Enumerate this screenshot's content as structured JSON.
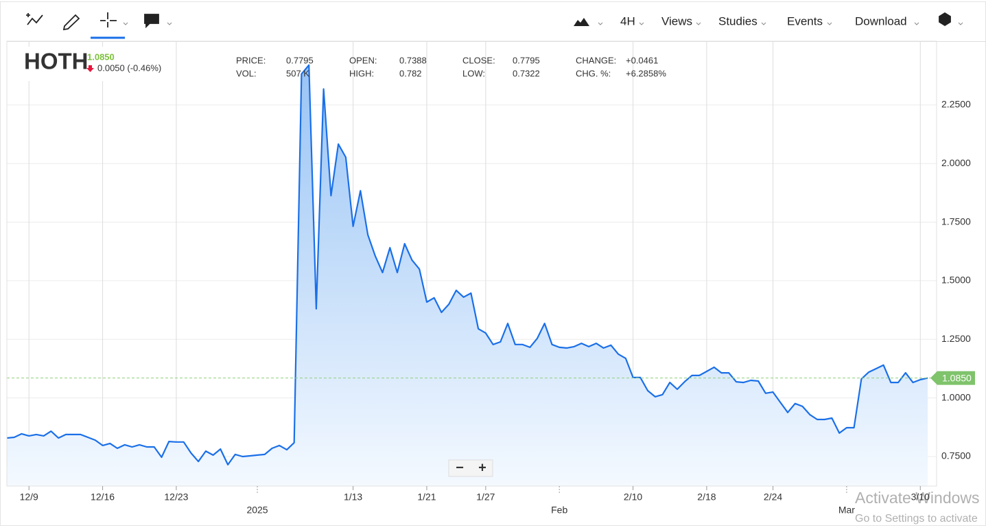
{
  "toolbar": {
    "interval": "4H",
    "menus": [
      "Views",
      "Studies",
      "Events",
      "Download"
    ],
    "zoom": [
      "−",
      "+"
    ]
  },
  "watermark": [
    "Activate Windows",
    "Go to Settings to activate"
  ],
  "chart_data": {
    "type": "area",
    "symbol": "HOTH",
    "last": {
      "value": 1.085,
      "label": "1.0850"
    },
    "change": "0.0050 (-0.46%)",
    "info": [
      {
        "label": "PRICE:",
        "value": "0.7795"
      },
      {
        "label": "VOL:",
        "value": "507 K"
      },
      {
        "label": "OPEN:",
        "value": "0.7388"
      },
      {
        "label": "HIGH:",
        "value": "0.782"
      },
      {
        "label": "CLOSE:",
        "value": "0.7795"
      },
      {
        "label": "LOW:",
        "value": "0.7322"
      },
      {
        "label": "CHANGE:",
        "value": "+0.0461"
      },
      {
        "label": "CHG. %:",
        "value": "+6.2858%"
      }
    ],
    "color": "#1a6fe8",
    "categories": [
      null,
      null,
      null,
      "12/9",
      null,
      null,
      null,
      null,
      null,
      null,
      null,
      null,
      null,
      "12/16",
      null,
      null,
      null,
      null,
      null,
      null,
      null,
      null,
      null,
      "12/23",
      null,
      null,
      null,
      null,
      null,
      null,
      null,
      null,
      null,
      null,
      "2025",
      null,
      null,
      null,
      null,
      null,
      null,
      null,
      null,
      null,
      null,
      null,
      null,
      "1/13",
      null,
      null,
      null,
      null,
      null,
      null,
      null,
      null,
      null,
      "1/21",
      null,
      null,
      null,
      null,
      null,
      null,
      null,
      "1/27",
      null,
      null,
      null,
      null,
      null,
      null,
      null,
      null,
      null,
      "Feb",
      null,
      null,
      null,
      null,
      null,
      null,
      null,
      null,
      null,
      "2/10",
      null,
      null,
      null,
      null,
      null,
      null,
      null,
      null,
      null,
      "2/18",
      null,
      null,
      null,
      null,
      null,
      null,
      null,
      null,
      "2/24",
      null,
      null,
      null,
      null,
      null,
      null,
      null,
      null,
      null,
      "Mar",
      null,
      null,
      null,
      null,
      null,
      null,
      null,
      null,
      null,
      "3/10",
      null
    ],
    "values": [
      0.829,
      0.832,
      0.847,
      0.838,
      0.844,
      0.838,
      0.858,
      0.829,
      0.844,
      0.844,
      0.844,
      0.832,
      0.82,
      0.797,
      0.806,
      0.785,
      0.8,
      0.791,
      0.8,
      0.791,
      0.791,
      0.747,
      0.814,
      0.812,
      0.812,
      0.765,
      0.729,
      0.773,
      0.756,
      0.782,
      0.715,
      0.759,
      0.75,
      0.753,
      0.756,
      0.759,
      0.785,
      0.797,
      0.779,
      0.809,
      2.382,
      2.42,
      1.38,
      2.318,
      1.863,
      2.083,
      2.027,
      1.732,
      1.884,
      1.696,
      1.606,
      1.535,
      1.641,
      1.535,
      1.658,
      1.588,
      1.55,
      1.409,
      1.427,
      1.365,
      1.4,
      1.459,
      1.43,
      1.447,
      1.295,
      1.277,
      1.228,
      1.239,
      1.318,
      1.228,
      1.228,
      1.216,
      1.254,
      1.318,
      1.228,
      1.216,
      1.213,
      1.219,
      1.233,
      1.219,
      1.233,
      1.213,
      1.225,
      1.187,
      1.169,
      1.087,
      1.087,
      1.031,
      1.005,
      1.014,
      1.066,
      1.037,
      1.069,
      1.096,
      1.096,
      1.113,
      1.131,
      1.107,
      1.107,
      1.069,
      1.066,
      1.075,
      1.072,
      1.02,
      1.025,
      0.981,
      0.938,
      0.976,
      0.964,
      0.929,
      0.908,
      0.908,
      0.914,
      0.85,
      0.873,
      0.873,
      1.081,
      1.11,
      1.125,
      1.14,
      1.066,
      1.066,
      1.107,
      1.066,
      1.078,
      1.085
    ],
    "ylim": [
      0.624,
      2.522
    ],
    "yticks": [
      {
        "value": 0.75,
        "label": "0.7500"
      },
      {
        "value": 1.0,
        "label": "1.0000"
      },
      {
        "value": 1.25,
        "label": "1.2500"
      },
      {
        "value": 1.5,
        "label": "1.5000"
      },
      {
        "value": 1.75,
        "label": "1.7500"
      },
      {
        "value": 2.0,
        "label": "2.0000"
      },
      {
        "value": 2.25,
        "label": "2.2500"
      }
    ],
    "grid": true
  }
}
